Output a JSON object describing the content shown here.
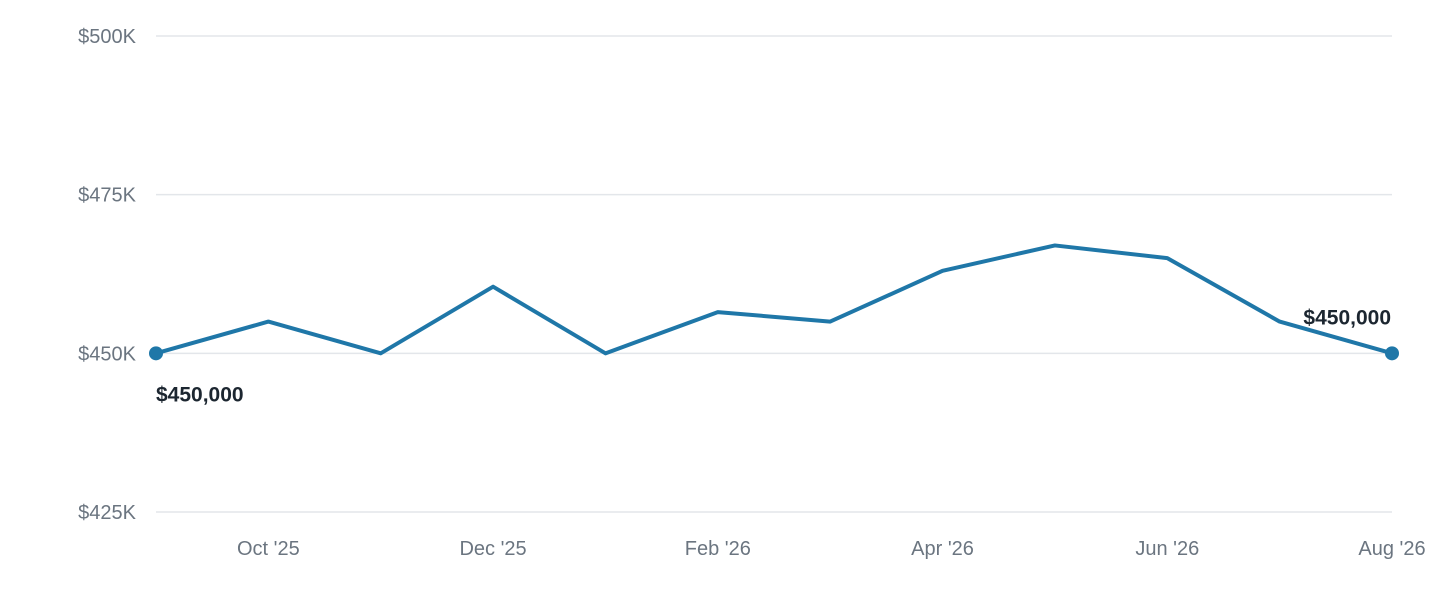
{
  "chart_data": {
    "type": "line",
    "title": "",
    "xlabel": "",
    "ylabel": "",
    "ylim": [
      425000,
      500000
    ],
    "grid": true,
    "y_ticks": [
      {
        "value": 500000,
        "label": "$500K"
      },
      {
        "value": 475000,
        "label": "$475K"
      },
      {
        "value": 450000,
        "label": "$450K"
      },
      {
        "value": 425000,
        "label": "$425K"
      }
    ],
    "x_ticks": [
      {
        "index": 1,
        "label": "Oct '25"
      },
      {
        "index": 3,
        "label": "Dec '25"
      },
      {
        "index": 5,
        "label": "Feb '26"
      },
      {
        "index": 7,
        "label": "Apr '26"
      },
      {
        "index": 9,
        "label": "Jun '26"
      },
      {
        "index": 11,
        "label": "Aug '26"
      }
    ],
    "x": [
      "Sep 2025",
      "Oct 2025",
      "Nov 2025",
      "Dec 2025",
      "Jan 2026",
      "Feb 2026",
      "Mar 2026",
      "Apr 2026",
      "May 2026",
      "Jun 2026",
      "Jul 2026",
      "Aug 2026"
    ],
    "series": [
      {
        "color": "#1f77a8",
        "values": [
          450000,
          455000,
          450000,
          460500,
          450000,
          456500,
          455000,
          463000,
          467000,
          465000,
          455000,
          450000
        ]
      }
    ],
    "endpoint_labels": {
      "start": "$450,000",
      "end": "$450,000"
    }
  }
}
